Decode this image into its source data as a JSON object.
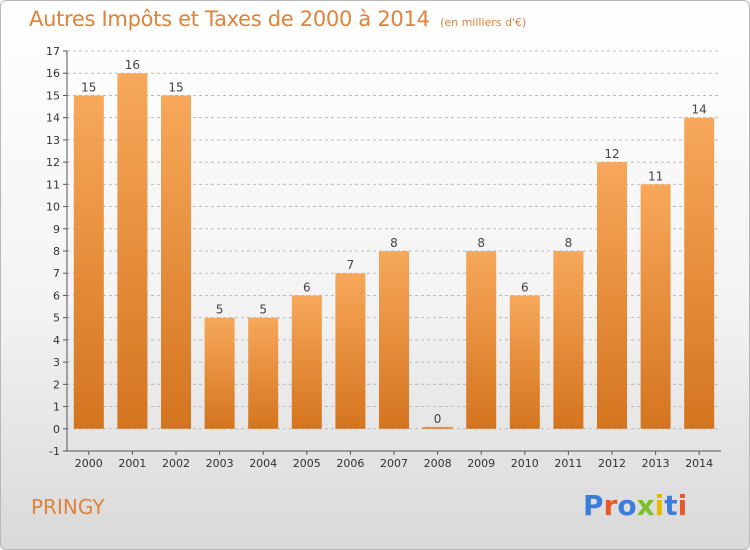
{
  "header": {
    "title": "Autres Impôts et Taxes de 2000 à 2014",
    "subtitle": "(en milliers d'€)"
  },
  "footer": {
    "location": "PRINGY",
    "logo_text": "Proxiti"
  },
  "colors": {
    "accent": "#e0823a",
    "bar_top": "#f7a85a",
    "bar_bottom": "#d4741f",
    "grid": "#bbbbbb",
    "logo": [
      "#3b7dd8",
      "#e8572a",
      "#3b7dd8",
      "#7bbf2a",
      "#e6b800",
      "#3b7dd8",
      "#e8572a"
    ]
  },
  "chart_data": {
    "type": "bar",
    "categories": [
      "2000",
      "2001",
      "2002",
      "2003",
      "2004",
      "2005",
      "2006",
      "2007",
      "2008",
      "2009",
      "2010",
      "2011",
      "2012",
      "2013",
      "2014"
    ],
    "values": [
      15,
      16,
      15,
      5,
      5,
      6,
      7,
      8,
      0,
      8,
      6,
      8,
      12,
      11,
      14
    ],
    "ylim": [
      -1,
      17
    ],
    "yticks": [
      -1,
      0,
      1,
      2,
      3,
      4,
      5,
      6,
      7,
      8,
      9,
      10,
      11,
      12,
      13,
      14,
      15,
      16,
      17
    ],
    "grid": true,
    "data_labels": true
  }
}
